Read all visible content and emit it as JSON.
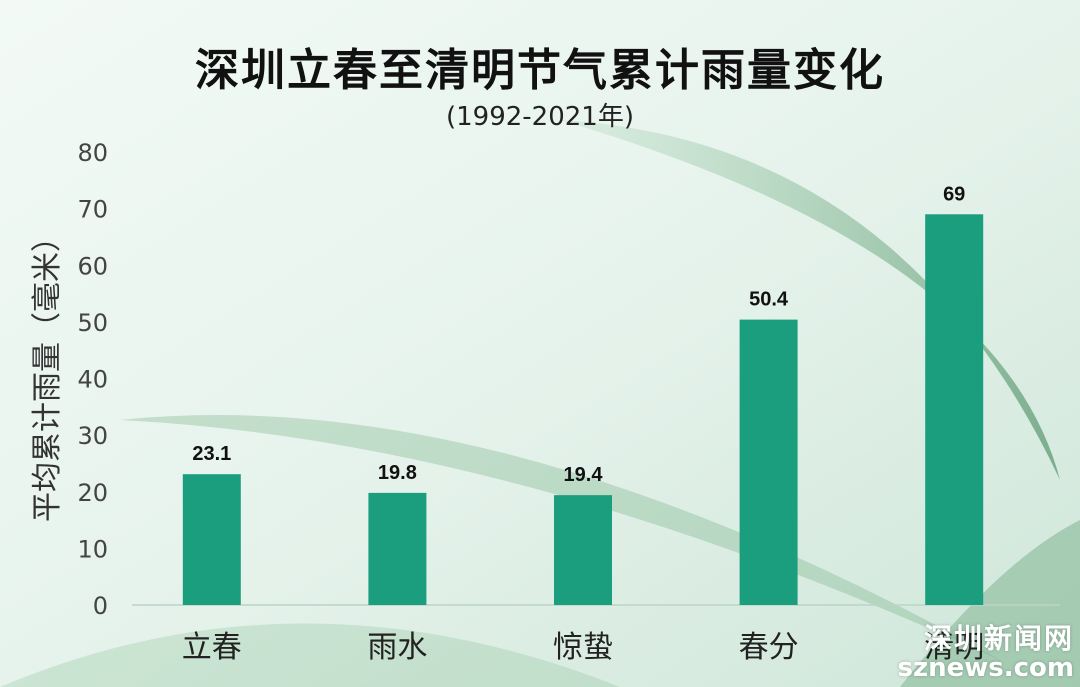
{
  "chart_data": {
    "type": "bar",
    "title": "深圳立春至清明节气累计雨量变化",
    "subtitle": "(1992-2021年)",
    "ylabel": "平均累计雨量（毫米）",
    "xlabel": "",
    "categories": [
      "立春",
      "雨水",
      "惊蛰",
      "春分",
      "清明"
    ],
    "values": [
      23.1,
      19.8,
      19.4,
      50.4,
      69
    ],
    "value_labels": [
      "23.1",
      "19.8",
      "19.4",
      "50.4",
      "69"
    ],
    "ylim": [
      0,
      80
    ],
    "yticks": [
      0,
      10,
      20,
      30,
      40,
      50,
      60,
      70,
      80
    ],
    "grid": false,
    "legend": "none",
    "bar_color": "#1b9e7e"
  },
  "watermark": {
    "line1": "深圳新闻网",
    "line2": "sznews.com"
  }
}
